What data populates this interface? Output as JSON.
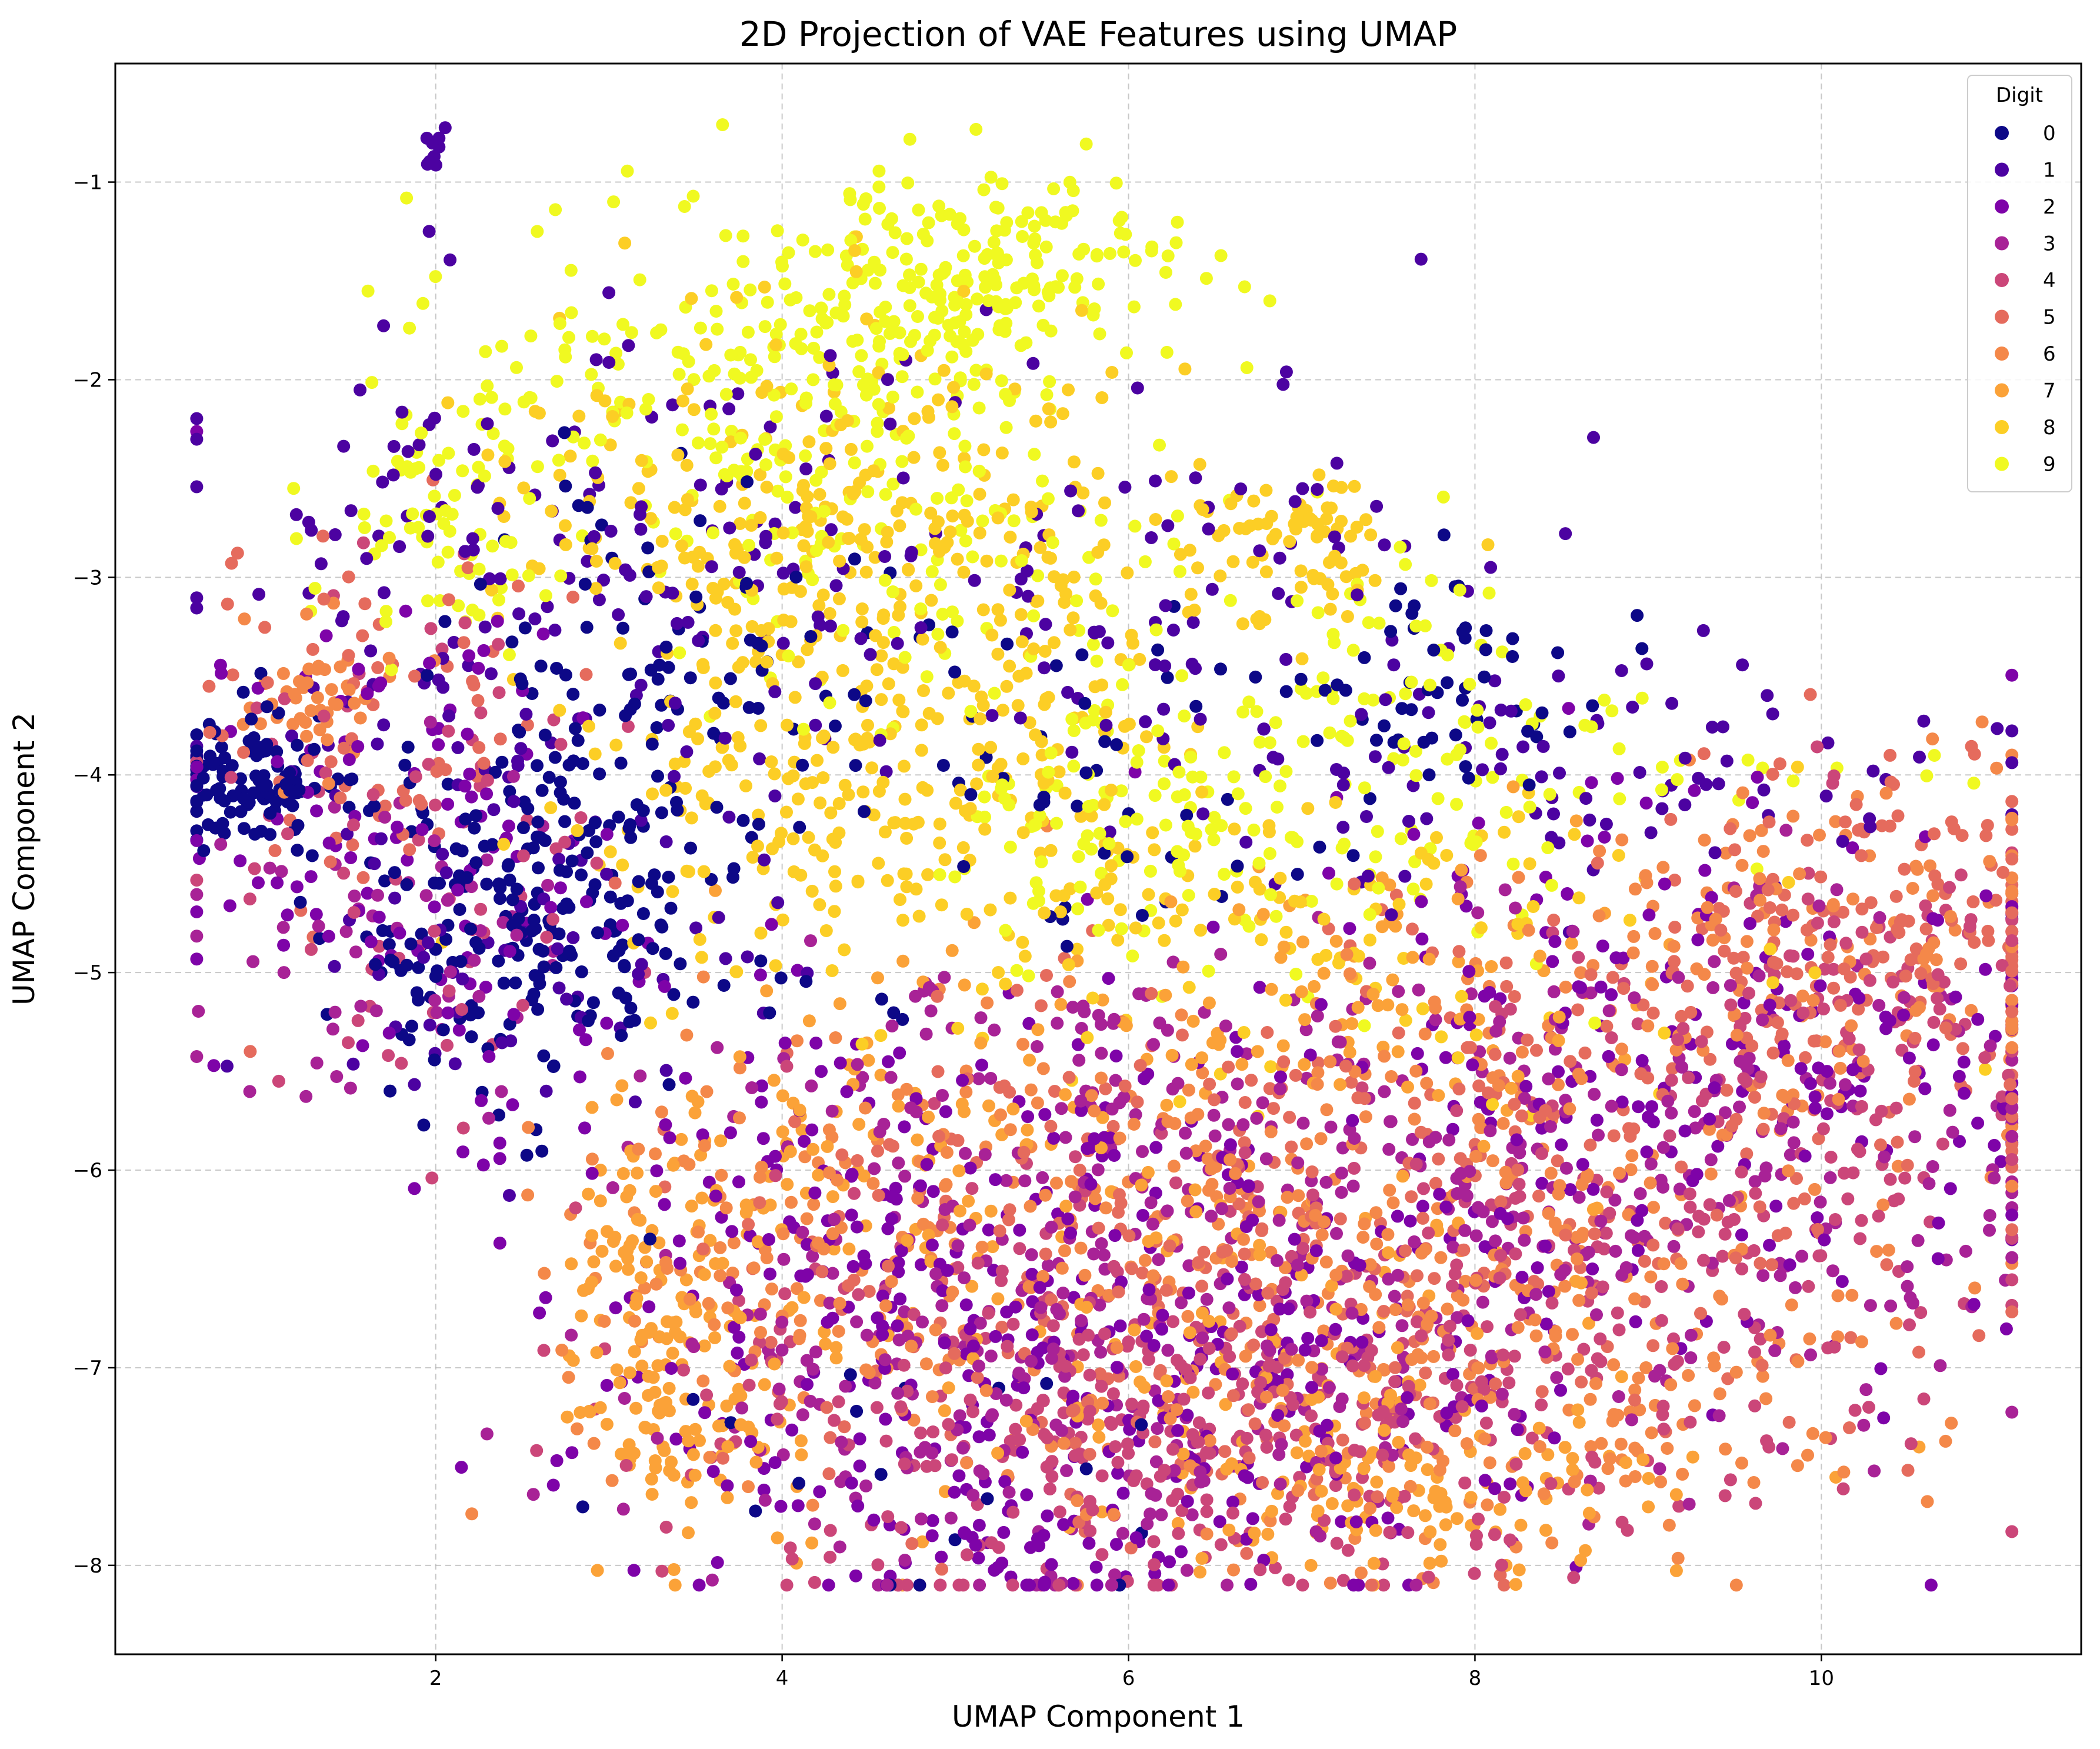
{
  "chart_data": {
    "type": "scatter",
    "title": "2D Projection of VAE Features using UMAP",
    "xlabel": "UMAP Component 1",
    "ylabel": "UMAP Component 2",
    "xlim": [
      0.15,
      11.5
    ],
    "ylim": [
      -8.45,
      -0.4
    ],
    "xticks": [
      2,
      4,
      6,
      8,
      10
    ],
    "yticks": [
      -1,
      -2,
      -3,
      -4,
      -5,
      -6,
      -7,
      -8
    ],
    "xtick_labels": [
      "2",
      "4",
      "6",
      "8",
      "10"
    ],
    "ytick_labels": [
      "−1",
      "−2",
      "−3",
      "−4",
      "−5",
      "−6",
      "−7",
      "−8"
    ],
    "grid": true,
    "legend": {
      "title": "Digit",
      "placement": "top-right",
      "entries": [
        "0",
        "1",
        "2",
        "3",
        "4",
        "5",
        "6",
        "7",
        "8",
        "9"
      ]
    },
    "colormap": "plasma",
    "series": [
      {
        "name": "0",
        "color": "#0d0887",
        "clusters": [
          {
            "cx": 0.9,
            "cy": -4.05,
            "sx": 0.25,
            "sy": 0.18,
            "n": 110
          },
          {
            "cx": 2.5,
            "cy": -4.7,
            "sx": 0.55,
            "sy": 0.45,
            "n": 230
          },
          {
            "cx": 3.3,
            "cy": -3.4,
            "sx": 0.6,
            "sy": 0.5,
            "n": 90
          },
          {
            "cx": 7.8,
            "cy": -3.6,
            "sx": 0.7,
            "sy": 0.3,
            "n": 60
          },
          {
            "cx": 5.2,
            "cy": -4.2,
            "sx": 0.8,
            "sy": 0.5,
            "n": 50
          },
          {
            "cx": 5.0,
            "cy": -7.6,
            "sx": 0.9,
            "sy": 0.35,
            "n": 20
          }
        ]
      },
      {
        "name": "1",
        "color": "#4c02a1",
        "clusters": [
          {
            "cx": 2.0,
            "cy": -0.83,
            "sx": 0.04,
            "sy": 0.07,
            "n": 10
          },
          {
            "cx": 2.0,
            "cy": -3.0,
            "sx": 0.9,
            "sy": 0.6,
            "n": 90
          },
          {
            "cx": 3.6,
            "cy": -2.9,
            "sx": 1.0,
            "sy": 0.6,
            "n": 90
          },
          {
            "cx": 6.3,
            "cy": -2.9,
            "sx": 1.0,
            "sy": 0.6,
            "n": 80
          },
          {
            "cx": 8.7,
            "cy": -4.0,
            "sx": 1.4,
            "sy": 0.3,
            "n": 90
          },
          {
            "cx": 2.4,
            "cy": -4.9,
            "sx": 0.6,
            "sy": 0.5,
            "n": 60
          }
        ]
      },
      {
        "name": "2",
        "color": "#7e03a8",
        "clusters": [
          {
            "cx": 1.8,
            "cy": -4.4,
            "sx": 0.6,
            "sy": 0.6,
            "n": 110
          },
          {
            "cx": 4.5,
            "cy": -6.3,
            "sx": 1.1,
            "sy": 0.7,
            "n": 200
          },
          {
            "cx": 6.5,
            "cy": -6.9,
            "sx": 1.3,
            "sy": 0.6,
            "n": 220
          },
          {
            "cx": 9.4,
            "cy": -5.4,
            "sx": 1.3,
            "sy": 0.7,
            "n": 220
          },
          {
            "cx": 5.2,
            "cy": -7.8,
            "sx": 0.7,
            "sy": 0.22,
            "n": 60
          }
        ]
      },
      {
        "name": "3",
        "color": "#a82296",
        "clusters": [
          {
            "cx": 1.7,
            "cy": -4.9,
            "sx": 0.6,
            "sy": 0.5,
            "n": 60
          },
          {
            "cx": 5.1,
            "cy": -7.1,
            "sx": 1.0,
            "sy": 0.6,
            "n": 200
          },
          {
            "cx": 7.5,
            "cy": -6.3,
            "sx": 1.2,
            "sy": 0.7,
            "n": 220
          },
          {
            "cx": 9.6,
            "cy": -5.9,
            "sx": 1.0,
            "sy": 0.7,
            "n": 160
          },
          {
            "cx": 5.8,
            "cy": -5.5,
            "sx": 0.9,
            "sy": 0.4,
            "n": 70
          }
        ]
      },
      {
        "name": "4",
        "color": "#cb4679",
        "clusters": [
          {
            "cx": 1.9,
            "cy": -4.3,
            "sx": 0.7,
            "sy": 0.7,
            "n": 80
          },
          {
            "cx": 5.5,
            "cy": -7.2,
            "sx": 1.1,
            "sy": 0.55,
            "n": 220
          },
          {
            "cx": 7.3,
            "cy": -7.2,
            "sx": 1.1,
            "sy": 0.45,
            "n": 200
          },
          {
            "cx": 9.2,
            "cy": -6.3,
            "sx": 1.0,
            "sy": 0.6,
            "n": 140
          },
          {
            "cx": 10.4,
            "cy": -5.1,
            "sx": 0.5,
            "sy": 0.5,
            "n": 90
          }
        ]
      },
      {
        "name": "5",
        "color": "#e56b5d",
        "clusters": [
          {
            "cx": 1.6,
            "cy": -3.7,
            "sx": 0.6,
            "sy": 0.5,
            "n": 70
          },
          {
            "cx": 6.0,
            "cy": -6.6,
            "sx": 1.2,
            "sy": 0.7,
            "n": 200
          },
          {
            "cx": 8.6,
            "cy": -5.9,
            "sx": 1.3,
            "sy": 0.7,
            "n": 220
          },
          {
            "cx": 10.4,
            "cy": -4.8,
            "sx": 0.6,
            "sy": 0.4,
            "n": 150
          }
        ]
      },
      {
        "name": "6",
        "color": "#f48849",
        "clusters": [
          {
            "cx": 1.3,
            "cy": -3.6,
            "sx": 0.25,
            "sy": 0.2,
            "n": 50
          },
          {
            "cx": 4.0,
            "cy": -6.4,
            "sx": 0.8,
            "sy": 0.5,
            "n": 120
          },
          {
            "cx": 6.5,
            "cy": -6.5,
            "sx": 1.3,
            "sy": 0.75,
            "n": 240
          },
          {
            "cx": 8.5,
            "cy": -6.8,
            "sx": 1.0,
            "sy": 0.55,
            "n": 200
          },
          {
            "cx": 9.8,
            "cy": -5.0,
            "sx": 1.0,
            "sy": 0.5,
            "n": 170
          }
        ]
      },
      {
        "name": "7",
        "color": "#fba238",
        "clusters": [
          {
            "cx": 3.2,
            "cy": -6.6,
            "sx": 0.3,
            "sy": 0.35,
            "n": 90
          },
          {
            "cx": 3.5,
            "cy": -7.3,
            "sx": 0.35,
            "sy": 0.3,
            "n": 80
          },
          {
            "cx": 4.4,
            "cy": -6.0,
            "sx": 0.7,
            "sy": 0.5,
            "n": 100
          },
          {
            "cx": 7.6,
            "cy": -7.6,
            "sx": 0.9,
            "sy": 0.25,
            "n": 110
          },
          {
            "cx": 7.2,
            "cy": -5.1,
            "sx": 1.0,
            "sy": 0.35,
            "n": 90
          },
          {
            "cx": 6.6,
            "cy": -6.8,
            "sx": 1.2,
            "sy": 0.6,
            "n": 130
          }
        ]
      },
      {
        "name": "8",
        "color": "#fcce25",
        "clusters": [
          {
            "cx": 7.0,
            "cy": -2.85,
            "sx": 0.3,
            "sy": 0.18,
            "n": 70
          },
          {
            "cx": 4.2,
            "cy": -3.9,
            "sx": 0.7,
            "sy": 0.55,
            "n": 220
          },
          {
            "cx": 5.2,
            "cy": -3.0,
            "sx": 0.7,
            "sy": 0.7,
            "n": 200
          },
          {
            "cx": 3.6,
            "cy": -2.6,
            "sx": 0.7,
            "sy": 0.45,
            "n": 120
          },
          {
            "cx": 6.8,
            "cy": -4.8,
            "sx": 1.3,
            "sy": 0.4,
            "n": 140
          }
        ]
      },
      {
        "name": "9",
        "color": "#f0f921",
        "clusters": [
          {
            "cx": 5.0,
            "cy": -1.5,
            "sx": 0.65,
            "sy": 0.28,
            "n": 230
          },
          {
            "cx": 3.3,
            "cy": -2.0,
            "sx": 0.7,
            "sy": 0.4,
            "n": 130
          },
          {
            "cx": 2.1,
            "cy": -2.7,
            "sx": 0.4,
            "sy": 0.3,
            "n": 70
          },
          {
            "cx": 4.8,
            "cy": -2.7,
            "sx": 0.8,
            "sy": 0.6,
            "n": 150
          },
          {
            "cx": 7.2,
            "cy": -3.8,
            "sx": 0.8,
            "sy": 0.5,
            "n": 140
          },
          {
            "cx": 5.8,
            "cy": -4.3,
            "sx": 0.5,
            "sy": 0.35,
            "n": 80
          },
          {
            "cx": 9.5,
            "cy": -4.0,
            "sx": 0.8,
            "sy": 0.2,
            "n": 20
          }
        ]
      }
    ]
  }
}
